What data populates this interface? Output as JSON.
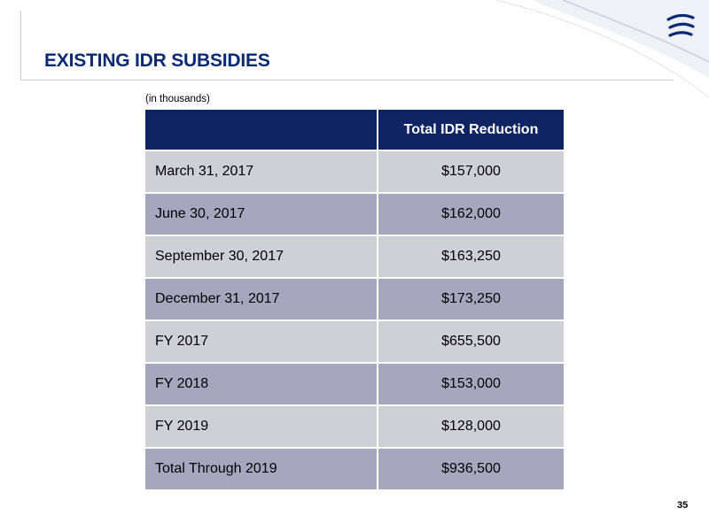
{
  "slide": {
    "title": "EXISTING IDR SUBSIDIES",
    "units_note": "(in thousands)",
    "page_number": "35"
  },
  "table": {
    "header": {
      "label_column": "",
      "value_column": "Total IDR Reduction"
    },
    "rows": [
      {
        "label": "March 31, 2017",
        "value": "$157,000"
      },
      {
        "label": "June 30, 2017",
        "value": "$162,000"
      },
      {
        "label": "September 30, 2017",
        "value": "$163,250"
      },
      {
        "label": "December 31, 2017",
        "value": "$173,250"
      },
      {
        "label": "FY 2017",
        "value": "$655,500"
      },
      {
        "label": "FY 2018",
        "value": "$153,000"
      },
      {
        "label": "FY 2019",
        "value": "$128,000"
      },
      {
        "label": "Total Through 2019",
        "value": "$936,500"
      }
    ]
  },
  "colors": {
    "title": "#0b2a74",
    "header_background": "#0f2462",
    "row_light": "#cfcfd6",
    "row_dark": "#a6a6bf",
    "logo": "#0b2a74"
  },
  "icons": {
    "logo": "company-logo-icon"
  }
}
